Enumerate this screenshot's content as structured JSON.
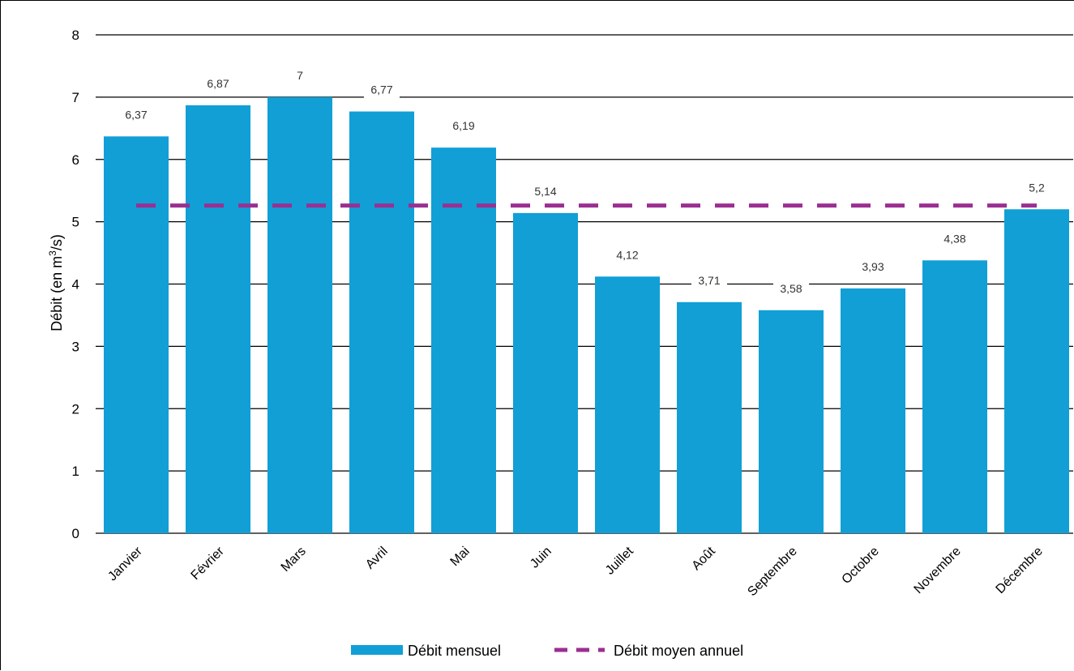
{
  "chart_data": {
    "type": "bar",
    "ylabel_main": "Débit (en m",
    "ylabel_sup": "3",
    "ylabel_end": "/s)",
    "ylim": [
      0,
      8
    ],
    "yticks": [
      0,
      1,
      2,
      3,
      4,
      5,
      6,
      7,
      8
    ],
    "grid": true,
    "categories": [
      "Janvier",
      "Février",
      "Mars",
      "Avril",
      "Mai",
      "Juin",
      "Juillet",
      "Août",
      "Septembre",
      "Octobre",
      "Novembre",
      "Décembre"
    ],
    "series": [
      {
        "name": "Débit mensuel",
        "kind": "bar",
        "color": "#119fd6",
        "values": [
          6.37,
          6.87,
          7,
          6.77,
          6.19,
          5.14,
          4.12,
          3.71,
          3.58,
          3.93,
          4.38,
          5.2
        ],
        "labels": [
          "6,37",
          "6,87",
          "7",
          "6,77",
          "6,19",
          "5,14",
          "4,12",
          "3,71",
          "3,58",
          "3,93",
          "4,38",
          "5,2"
        ]
      },
      {
        "name": "Débit moyen annuel",
        "kind": "dashed-line",
        "color": "#9b2f91",
        "value": 5.26
      }
    ],
    "legend_position": "bottom"
  }
}
